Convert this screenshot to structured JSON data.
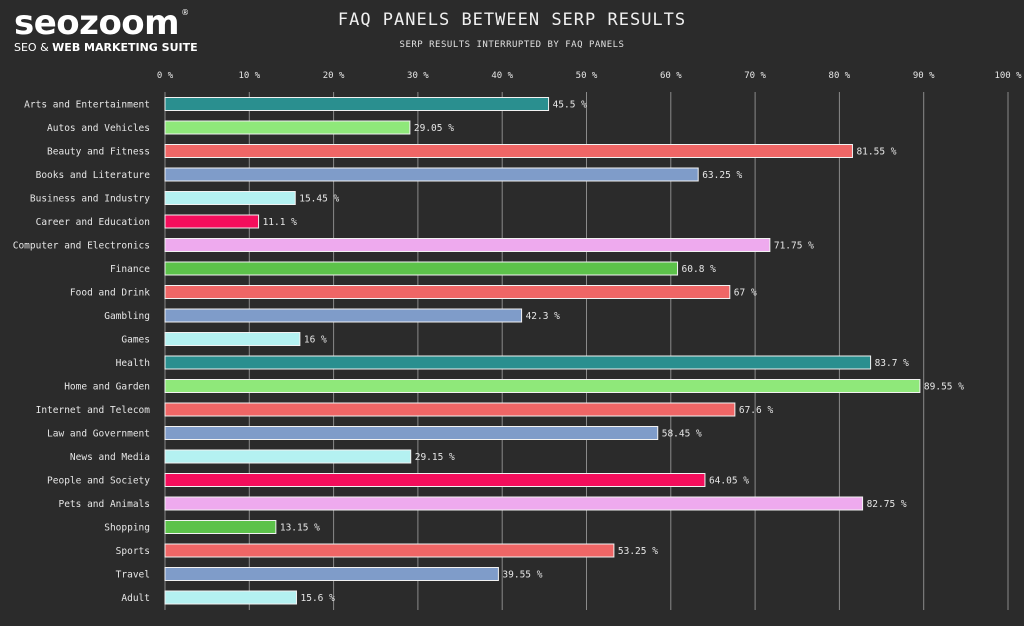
{
  "logo": {
    "word": "seozoom",
    "reg": "®",
    "tag_plain": "SEO & ",
    "tag_bold": "WEB MARKETING SUITE"
  },
  "chart_data": {
    "type": "bar",
    "orientation": "horizontal",
    "title": "FAQ PANELS BETWEEN SERP RESULTS",
    "subtitle": "SERP RESULTS INTERRUPTED BY FAQ PANELS",
    "xlim": [
      0,
      100
    ],
    "x_ticks": [
      "0 %",
      "10 %",
      "20 %",
      "30 %",
      "40 %",
      "50 %",
      "60 %",
      "70 %",
      "80 %",
      "90 %",
      "100 %"
    ],
    "x_axis_position": "top",
    "grid": true,
    "categories": [
      "Arts and Entertainment",
      "Autos and Vehicles",
      "Beauty and Fitness",
      "Books and Literature",
      "Business and Industry",
      "Career and Education",
      "Computer and Electronics",
      "Finance",
      "Food and Drink",
      "Gambling",
      "Games",
      "Health",
      "Home and Garden",
      "Internet and Telecom",
      "Law and Government",
      "News and Media",
      "People and Society",
      "Pets and Animals",
      "Shopping",
      "Sports",
      "Travel",
      "Adult"
    ],
    "values": [
      45.5,
      29.05,
      81.55,
      63.25,
      15.45,
      11.1,
      71.75,
      60.8,
      67,
      42.3,
      16,
      83.7,
      89.55,
      67.6,
      58.45,
      29.15,
      64.05,
      82.75,
      13.15,
      53.25,
      39.55,
      15.6
    ],
    "value_labels": [
      "45.5 %",
      "29.05 %",
      "81.55 %",
      "63.25 %",
      "15.45 %",
      "11.1 %",
      "71.75 %",
      "60.8 %",
      "67 %",
      "42.3 %",
      "16 %",
      "83.7 %",
      "89.55 %",
      "67.6 %",
      "58.45 %",
      "29.15 %",
      "64.05 %",
      "82.75 %",
      "13.15 %",
      "53.25 %",
      "39.55 %",
      "15.6 %"
    ],
    "colors": [
      "#2a8f8f",
      "#8fe87a",
      "#ef6666",
      "#7f9cc9",
      "#b4f1f1",
      "#f40e5c",
      "#eeaaee",
      "#5cc24a",
      "#ef6666",
      "#7f9cc9",
      "#b4f1f1",
      "#2a8f8f",
      "#8fe87a",
      "#ef6666",
      "#7f9cc9",
      "#b4f1f1",
      "#f40e5c",
      "#eeaaee",
      "#5cc24a",
      "#ef6666",
      "#7f9cc9",
      "#b4f1f1"
    ]
  }
}
